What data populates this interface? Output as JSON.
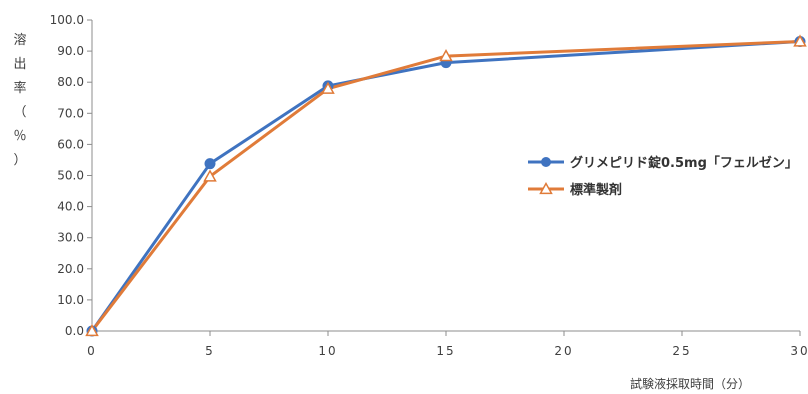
{
  "chart_data": {
    "type": "line",
    "x": [
      0,
      5,
      10,
      15,
      30
    ],
    "series": [
      {
        "name": "グリメピリド錠0.5mg「フェルゼン」",
        "values": [
          0.0,
          53.8,
          78.8,
          86.3,
          93.1
        ]
      },
      {
        "name": "標準製剤",
        "values": [
          0.0,
          49.7,
          77.9,
          88.4,
          93.1
        ]
      }
    ],
    "x_ticks": [
      "0",
      "5",
      "10",
      "15",
      "20",
      "25",
      "30"
    ],
    "y_ticks": [
      "0.0",
      "10.0",
      "20.0",
      "30.0",
      "40.0",
      "50.0",
      "60.0",
      "70.0",
      "80.0",
      "90.0",
      "100.0"
    ],
    "xlabel": "試験液採取時間（分）",
    "ylabel": [
      "溶",
      "出",
      "率",
      "（",
      "％",
      "）"
    ],
    "xlim": [
      0,
      30
    ],
    "ylim": [
      0,
      100
    ],
    "grid": false,
    "legend_position": "right",
    "colors": [
      "#3f73c0",
      "#e07b39"
    ],
    "markers": [
      "circle",
      "triangle"
    ]
  }
}
